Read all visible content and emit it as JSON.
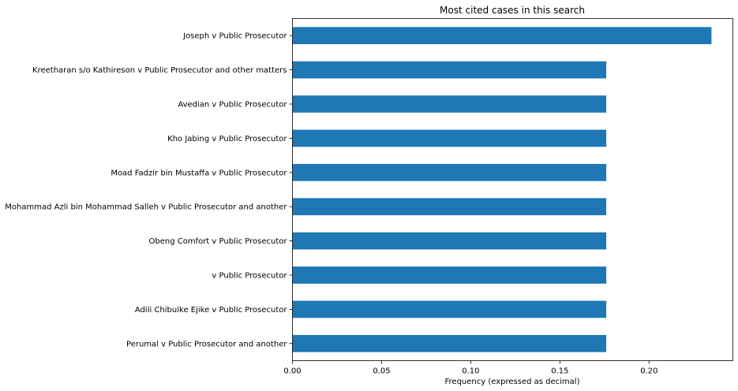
{
  "chart_data": {
    "type": "bar",
    "orientation": "horizontal",
    "title": "Most cited cases in this search",
    "xlabel": "Frequency (expressed as decimal)",
    "ylabel": "",
    "xlim": [
      0,
      0.247
    ],
    "xticks": [
      0.0,
      0.05,
      0.1,
      0.15,
      0.2
    ],
    "xtick_labels": [
      "0.00",
      "0.05",
      "0.10",
      "0.15",
      "0.20"
    ],
    "grid": false,
    "bar_color": "#1f77b4",
    "categories": [
      "Joseph v Public Prosecutor",
      "Kreetharan s/o Kathireson v Public Prosecutor and other matters",
      "Avedian v Public Prosecutor",
      "Kho Jabing v Public Prosecutor",
      "Moad Fadzir bin Mustaffa v Public Prosecutor",
      "Mohammad Azli bin Mohammad Salleh v Public Prosecutor and another",
      "Obeng Comfort v Public Prosecutor",
      "v Public Prosecutor",
      "Adili Chibuike Ejike v Public Prosecutor",
      "Perumal v Public Prosecutor and another"
    ],
    "values": [
      0.235,
      0.176,
      0.176,
      0.176,
      0.176,
      0.176,
      0.176,
      0.176,
      0.176,
      0.176
    ]
  }
}
